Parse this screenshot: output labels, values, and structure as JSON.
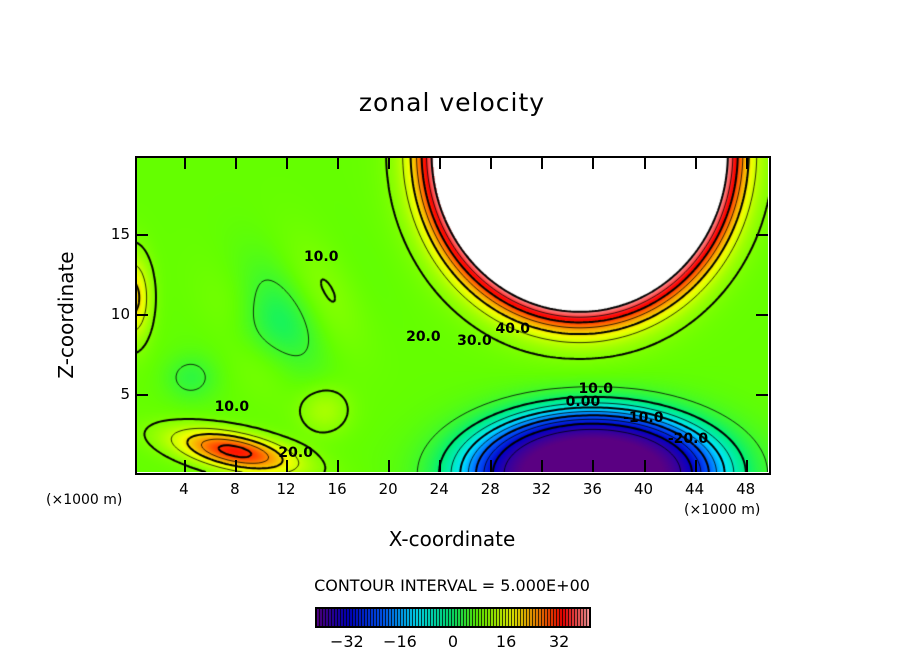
{
  "chart_data": {
    "type": "contour",
    "title": "zonal velocity",
    "xlabel": "X-coordinate",
    "ylabel": "Z-coordinate",
    "x_unit_label": "(×1000 m)",
    "y_unit_label": "(×1000 m)",
    "xlim": [
      0.25,
      49.75
    ],
    "ylim": [
      0.1,
      19.8
    ],
    "xticks": [
      "4",
      "8",
      "12",
      "16",
      "20",
      "24",
      "28",
      "32",
      "36",
      "40",
      "44",
      "48"
    ],
    "yticks": [
      "5",
      "10",
      "15"
    ],
    "contour_interval_text": "CONTOUR INTERVAL = 5.000E+00",
    "contour_interval": 5,
    "color_range": [
      -40,
      40
    ],
    "colorbar_ticks": [
      "−32",
      "−16",
      "0",
      "16",
      "32"
    ],
    "colorbar_tick_values": [
      -32,
      -16,
      0,
      16,
      32
    ],
    "contour_labels": [
      {
        "text": "10.0",
        "x": 14.5,
        "z": 13.5
      },
      {
        "text": "20.0",
        "x": 22.5,
        "z": 8.5
      },
      {
        "text": "30.0",
        "x": 26.5,
        "z": 8.2
      },
      {
        "text": "40.0",
        "x": 29.5,
        "z": 9.0
      },
      {
        "text": "10.0",
        "x": 7.5,
        "z": 4.1
      },
      {
        "text": "20.0",
        "x": 12.5,
        "z": 1.2
      },
      {
        "text": "10.0",
        "x": 36,
        "z": 5.2
      },
      {
        "text": "0.00",
        "x": 35,
        "z": 4.4
      },
      {
        "text": "-10.0",
        "x": 39.5,
        "z": 3.4
      },
      {
        "text": "-20.0",
        "x": 43,
        "z": 2.1
      }
    ],
    "features": {
      "max_jet_center": [
        35,
        16
      ],
      "min_jet_center": [
        36,
        0
      ]
    }
  }
}
